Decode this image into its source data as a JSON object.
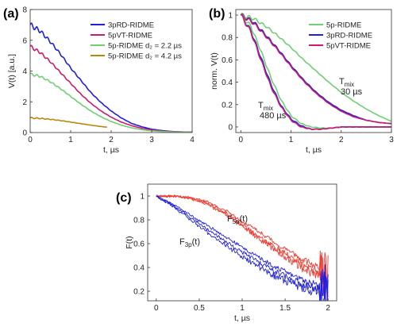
{
  "colors": {
    "blue": "#1f1fe0",
    "crimson": "#cc1a6e",
    "green": "#6fcf73",
    "gold": "#b8860b",
    "red": "#f03c32"
  },
  "chart_data": [
    {
      "panel": "(a)",
      "type": "line",
      "title": "",
      "xlabel": "t, µs",
      "ylabel": "V(t) [a.u.]",
      "xlim": [
        0,
        4
      ],
      "ylim": [
        0,
        8
      ],
      "xticks": [
        0,
        1,
        2,
        3,
        4
      ],
      "yticks": [
        0,
        2,
        4,
        6,
        8
      ],
      "xtick_labels": [
        "0",
        "1",
        "2",
        "3",
        "4"
      ],
      "ytick_labels": [
        "0",
        "2",
        "4",
        "6",
        "8"
      ],
      "legend": {
        "placement": "top-right"
      },
      "series": [
        {
          "name": "3pRD-RIDME",
          "color": "blue",
          "x": [
            0,
            0.25,
            0.5,
            0.75,
            1,
            1.25,
            1.5,
            1.75,
            2,
            2.25,
            2.5,
            2.75,
            3,
            3.25,
            3.5,
            3.75,
            4
          ],
          "y": [
            7.0,
            6.6,
            5.9,
            5.1,
            4.2,
            3.4,
            2.6,
            1.95,
            1.4,
            0.95,
            0.6,
            0.38,
            0.22,
            0.13,
            0.07,
            0.04,
            0.03
          ],
          "osc": 0.18
        },
        {
          "name": "5pVT-RIDME",
          "color": "crimson",
          "x": [
            0,
            0.25,
            0.5,
            0.75,
            1,
            1.25,
            1.5,
            1.75,
            2,
            2.25,
            2.5,
            2.75,
            3,
            3.25,
            3.5,
            3.75,
            4
          ],
          "y": [
            5.6,
            5.2,
            4.6,
            3.9,
            3.2,
            2.5,
            1.9,
            1.4,
            1.0,
            0.68,
            0.45,
            0.28,
            0.17,
            0.1,
            0.06,
            0.04,
            0.03
          ],
          "osc": 0.12
        },
        {
          "name": "5p-RIDME d₂ = 2.2 µs",
          "color": "green",
          "x": [
            0,
            0.25,
            0.5,
            0.75,
            1,
            1.25,
            1.5,
            1.75,
            2,
            2.25,
            2.5,
            2.75,
            3,
            3.25,
            3.5,
            3.75,
            4
          ],
          "y": [
            3.8,
            3.65,
            3.3,
            2.85,
            2.35,
            1.85,
            1.4,
            1.02,
            0.72,
            0.48,
            0.31,
            0.19,
            0.11,
            0.07,
            0.04,
            0.03,
            0.02
          ],
          "osc": 0.09
        },
        {
          "name": "5p-RIDME d₂ = 4.2 µs",
          "color": "gold",
          "x": [
            0,
            0.25,
            0.5,
            0.75,
            1,
            1.25,
            1.5,
            1.75,
            1.9
          ],
          "y": [
            0.95,
            0.92,
            0.86,
            0.78,
            0.68,
            0.58,
            0.48,
            0.39,
            0.35
          ],
          "osc": 0.04
        }
      ]
    },
    {
      "panel": "(b)",
      "type": "line",
      "title": "",
      "xlabel": "t, µs",
      "ylabel": "norm. V(t)",
      "xlim": [
        -0.1,
        3
      ],
      "ylim": [
        -0.05,
        1.05
      ],
      "xticks": [
        0,
        1,
        2,
        3
      ],
      "yticks": [
        0,
        0.2,
        0.4,
        0.6,
        0.8,
        1
      ],
      "xtick_labels": [
        "0",
        "1",
        "2",
        "3"
      ],
      "ytick_labels": [
        "0",
        "0.2",
        "0.4",
        "0.6",
        "0.8",
        "1"
      ],
      "legend": {
        "placement": "top-right"
      },
      "annotations": [
        {
          "text": "T",
          "sub": "mix",
          "line2": "30 µs"
        },
        {
          "text": "T",
          "sub": "mix",
          "line2": "480 µs"
        }
      ],
      "series": [
        {
          "name": "5p-RIDME",
          "color": "green",
          "x": [
            0,
            0.25,
            0.5,
            0.75,
            1,
            1.25,
            1.5,
            1.75,
            2,
            2.25,
            2.5,
            2.75,
            3
          ],
          "y": [
            1.0,
            0.97,
            0.9,
            0.81,
            0.71,
            0.6,
            0.5,
            0.4,
            0.31,
            0.23,
            0.16,
            0.1,
            0.05
          ],
          "osc": 0.02
        },
        {
          "name": "3pRD-RIDME",
          "color": "blue",
          "x": [
            0,
            0.25,
            0.5,
            0.75,
            1,
            1.25,
            1.5,
            1.75,
            2,
            2.25,
            2.5,
            2.75,
            3
          ],
          "y": [
            1.0,
            0.94,
            0.82,
            0.69,
            0.55,
            0.42,
            0.31,
            0.22,
            0.15,
            0.1,
            0.06,
            0.04,
            0.03
          ],
          "osc": 0.02
        },
        {
          "name": "5pVT-RIDME",
          "color": "crimson",
          "x": [
            0,
            0.25,
            0.5,
            0.75,
            1,
            1.25,
            1.5,
            1.75,
            2,
            2.25,
            2.5,
            2.75,
            3
          ],
          "y": [
            1.0,
            0.93,
            0.81,
            0.68,
            0.54,
            0.41,
            0.3,
            0.21,
            0.14,
            0.09,
            0.06,
            0.04,
            0.03
          ],
          "osc": 0.02
        },
        {
          "name": "",
          "color": "green",
          "x": [
            0,
            0.2,
            0.4,
            0.6,
            0.8,
            1,
            1.2,
            1.4,
            1.6,
            1.8,
            2,
            2.5,
            3
          ],
          "y": [
            1.0,
            0.9,
            0.68,
            0.44,
            0.24,
            0.1,
            0.03,
            0.0,
            -0.01,
            -0.01,
            0.0,
            0.0,
            0.0
          ],
          "osc": 0.02
        },
        {
          "name": "",
          "color": "blue",
          "x": [
            0,
            0.2,
            0.4,
            0.6,
            0.8,
            1,
            1.2,
            1.4,
            1.6,
            1.8,
            2,
            2.5,
            3
          ],
          "y": [
            1.0,
            0.86,
            0.62,
            0.38,
            0.19,
            0.07,
            0.01,
            -0.02,
            -0.02,
            -0.01,
            0.0,
            0.0,
            0.0
          ],
          "osc": 0.02
        },
        {
          "name": "",
          "color": "crimson",
          "x": [
            0,
            0.2,
            0.4,
            0.6,
            0.8,
            1,
            1.2,
            1.4,
            1.6,
            1.8,
            2,
            2.5,
            3
          ],
          "y": [
            1.0,
            0.85,
            0.6,
            0.36,
            0.18,
            0.06,
            0.0,
            -0.02,
            -0.02,
            -0.01,
            0.0,
            0.0,
            0.0
          ],
          "osc": 0.02
        }
      ]
    },
    {
      "panel": "(c)",
      "type": "line",
      "title": "",
      "xlabel": "t, µs",
      "ylabel": "F(t)",
      "xlim": [
        -0.1,
        2.1
      ],
      "ylim": [
        0.12,
        1.1
      ],
      "xticks": [
        0,
        0.5,
        1,
        1.5,
        2
      ],
      "yticks": [
        0.2,
        0.4,
        0.6,
        0.8,
        1
      ],
      "xtick_labels": [
        "0",
        "0.5",
        "1",
        "1.5",
        "2"
      ],
      "ytick_labels": [
        "0.2",
        "0.4",
        "0.6",
        "0.8",
        "1"
      ],
      "annotations": [
        {
          "text": "F",
          "sub": "5p",
          "tail": "(t)"
        },
        {
          "text": "F",
          "sub": "3p",
          "tail": "(t)"
        }
      ],
      "series": [
        {
          "name": "",
          "color": "red",
          "x": [
            0,
            0.2,
            0.4,
            0.6,
            0.8,
            1,
            1.2,
            1.4,
            1.6,
            1.8,
            2
          ],
          "y": [
            1.0,
            1.0,
            0.99,
            0.95,
            0.88,
            0.79,
            0.7,
            0.6,
            0.51,
            0.43,
            0.36
          ],
          "noise": 0.025
        },
        {
          "name": "",
          "color": "red",
          "x": [
            0,
            0.2,
            0.4,
            0.6,
            0.8,
            1,
            1.2,
            1.4,
            1.6,
            1.8,
            2
          ],
          "y": [
            1.0,
            1.0,
            0.98,
            0.94,
            0.86,
            0.76,
            0.66,
            0.56,
            0.47,
            0.39,
            0.32
          ],
          "noise": 0.03
        },
        {
          "name": "",
          "color": "red",
          "x": [
            0,
            0.2,
            0.4,
            0.6,
            0.8,
            1,
            1.2,
            1.4,
            1.6,
            1.8,
            2
          ],
          "y": [
            1.0,
            1.0,
            0.98,
            0.93,
            0.85,
            0.75,
            0.64,
            0.54,
            0.44,
            0.36,
            0.29
          ],
          "noise": 0.035
        },
        {
          "name": "",
          "color": "blue",
          "x": [
            0,
            0.2,
            0.4,
            0.6,
            0.8,
            1,
            1.2,
            1.4,
            1.6,
            1.8,
            2
          ],
          "y": [
            1.0,
            0.93,
            0.84,
            0.75,
            0.66,
            0.57,
            0.48,
            0.4,
            0.33,
            0.27,
            0.22
          ],
          "noise": 0.025
        },
        {
          "name": "",
          "color": "blue",
          "x": [
            0,
            0.2,
            0.4,
            0.6,
            0.8,
            1,
            1.2,
            1.4,
            1.6,
            1.8,
            2
          ],
          "y": [
            1.0,
            0.92,
            0.82,
            0.72,
            0.62,
            0.53,
            0.44,
            0.36,
            0.29,
            0.24,
            0.19
          ],
          "noise": 0.03
        },
        {
          "name": "",
          "color": "blue",
          "x": [
            0,
            0.2,
            0.4,
            0.6,
            0.8,
            1,
            1.2,
            1.4,
            1.6,
            1.8,
            2
          ],
          "y": [
            1.0,
            0.91,
            0.8,
            0.69,
            0.59,
            0.49,
            0.4,
            0.32,
            0.26,
            0.21,
            0.17
          ],
          "noise": 0.035
        }
      ]
    }
  ]
}
